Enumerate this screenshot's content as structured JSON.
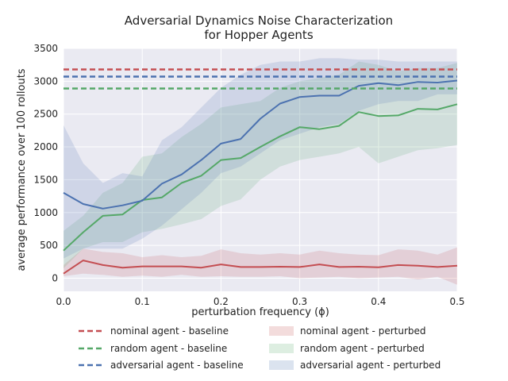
{
  "chart_data": {
    "type": "line",
    "title_lines": [
      "Adversarial Dynamics Noise Characterization",
      "for Hopper Agents"
    ],
    "xlabel": "perturbation frequency (ϕ)",
    "ylabel": "average performance over 100 rollouts",
    "xlim": [
      0,
      0.5
    ],
    "ylim": [
      -200,
      3500
    ],
    "xticks": [
      0.0,
      0.1,
      0.2,
      0.3,
      0.4,
      0.5
    ],
    "xtick_labels": [
      "0.0",
      "0.1",
      "0.2",
      "0.3",
      "0.4",
      "0.5"
    ],
    "yticks": [
      0,
      500,
      1000,
      1500,
      2000,
      2500,
      3000,
      3500
    ],
    "ytick_labels": [
      "0",
      "500",
      "1000",
      "1500",
      "2000",
      "2500",
      "3000",
      "3500"
    ],
    "grid": true,
    "legend_placement": "below",
    "x": [
      0.0,
      0.025,
      0.05,
      0.075,
      0.1,
      0.125,
      0.15,
      0.175,
      0.2,
      0.225,
      0.25,
      0.275,
      0.3,
      0.325,
      0.35,
      0.375,
      0.4,
      0.425,
      0.45,
      0.475,
      0.5
    ],
    "baselines": [
      {
        "name": "nominal agent - baseline",
        "value": 3180,
        "color": "#c44e52"
      },
      {
        "name": "random agent - baseline",
        "value": 2890,
        "color": "#55a868"
      },
      {
        "name": "adversarial agent - baseline",
        "value": 3070,
        "color": "#4c72b0"
      }
    ],
    "series": [
      {
        "name": "nominal agent - perturbed",
        "color": "#c44e52",
        "values": [
          70,
          270,
          200,
          160,
          180,
          180,
          180,
          160,
          210,
          170,
          170,
          175,
          170,
          210,
          170,
          175,
          165,
          200,
          190,
          170,
          190
        ],
        "upper": [
          200,
          450,
          400,
          380,
          320,
          350,
          320,
          340,
          440,
          380,
          360,
          380,
          360,
          420,
          380,
          360,
          350,
          440,
          420,
          360,
          470
        ],
        "lower": [
          30,
          70,
          50,
          20,
          40,
          20,
          50,
          20,
          30,
          20,
          20,
          30,
          0,
          10,
          20,
          0,
          10,
          20,
          -20,
          20,
          -100
        ]
      },
      {
        "name": "random agent - perturbed",
        "color": "#55a868",
        "values": [
          420,
          700,
          950,
          970,
          1190,
          1230,
          1450,
          1560,
          1800,
          1830,
          2000,
          2160,
          2300,
          2270,
          2320,
          2530,
          2470,
          2480,
          2580,
          2570,
          2650
        ],
        "upper": [
          720,
          950,
          1300,
          1450,
          1850,
          1900,
          2150,
          2350,
          2600,
          2650,
          2700,
          2900,
          3000,
          3050,
          3100,
          3300,
          3250,
          3150,
          3200,
          3200,
          3280
        ],
        "lower": [
          150,
          450,
          550,
          550,
          700,
          750,
          820,
          900,
          1100,
          1200,
          1500,
          1700,
          1800,
          1850,
          1900,
          2000,
          1750,
          1850,
          1950,
          1980,
          2030
        ]
      },
      {
        "name": "adversarial agent - perturbed",
        "color": "#4c72b0",
        "values": [
          1300,
          1130,
          1060,
          1110,
          1180,
          1440,
          1580,
          1800,
          2050,
          2120,
          2430,
          2660,
          2760,
          2780,
          2780,
          2930,
          2970,
          2940,
          2990,
          2980,
          3010
        ],
        "upper": [
          2330,
          1750,
          1450,
          1600,
          1550,
          2100,
          2300,
          2600,
          2900,
          3100,
          3250,
          3300,
          3300,
          3350,
          3350,
          3330,
          3330,
          3300,
          3300,
          3300,
          3300
        ],
        "lower": [
          300,
          450,
          450,
          450,
          600,
          800,
          1050,
          1300,
          1600,
          1700,
          1900,
          2100,
          2200,
          2300,
          2350,
          2550,
          2650,
          2700,
          2700,
          2800,
          2800
        ]
      }
    ]
  }
}
